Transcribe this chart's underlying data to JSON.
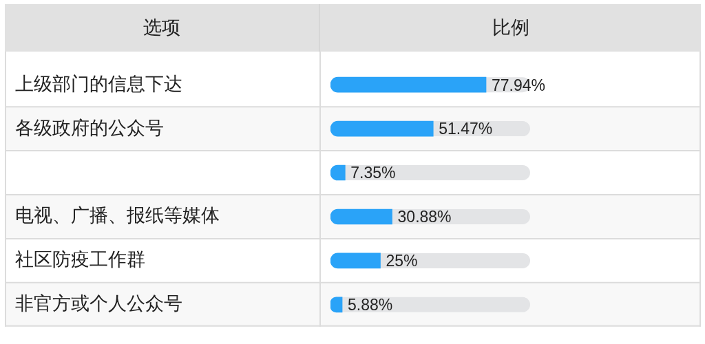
{
  "chart_data": {
    "type": "bar",
    "orientation": "horizontal",
    "xlabel": "比例",
    "ylabel": "选项",
    "categories": [
      "上级部门的信息下达",
      "各级政府的公众号",
      null,
      "电视、广播、报纸等媒体",
      "社区防疫工作群",
      "非官方或个人公众号"
    ],
    "values": [
      77.94,
      51.47,
      7.35,
      30.88,
      25,
      5.88
    ],
    "value_labels": [
      "77.94%",
      "51.47%",
      "7.35%",
      "30.88%",
      "25%",
      "5.88%"
    ],
    "color": "#2aa3f8",
    "xlim": [
      0,
      100
    ],
    "tick_labels": "y",
    "grid": "y",
    "legend": false
  }
}
